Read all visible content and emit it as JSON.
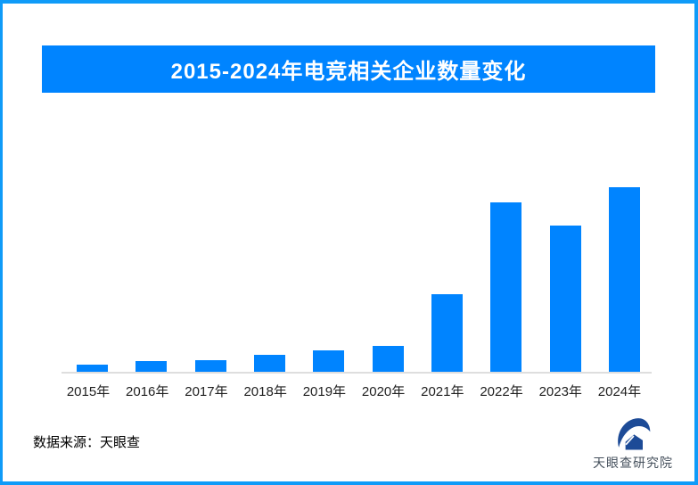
{
  "page": {
    "background": "#ffffff",
    "border_color": "#0f9bf8"
  },
  "header": {
    "title": "2015-2024年电竞相关企业数量变化",
    "banner_color": "#0084ff",
    "title_color": "#ffffff"
  },
  "chart_data": {
    "type": "bar",
    "title": "2015-2024年电竞相关企业数量变化",
    "categories": [
      "2015年",
      "2016年",
      "2017年",
      "2018年",
      "2019年",
      "2020年",
      "2021年",
      "2022年",
      "2023年",
      "2024年"
    ],
    "values": [
      4,
      6,
      6.5,
      9,
      11.5,
      14,
      42,
      92,
      79,
      100
    ],
    "ylim": [
      0,
      100
    ],
    "value_labels_shown": false,
    "y_axis_shown": false,
    "grid": false,
    "legend": false,
    "xlabel": "",
    "ylabel": "",
    "bar_color": "#0084ff",
    "axis_line_color": "#dedede"
  },
  "footer": {
    "source_label": "数据来源：天眼查",
    "logo_icon": "tianyancha-logo-icon",
    "logo_text": "天眼查研究院",
    "logo_color": "#1d4b97",
    "logo_text_color": "#45505c"
  }
}
